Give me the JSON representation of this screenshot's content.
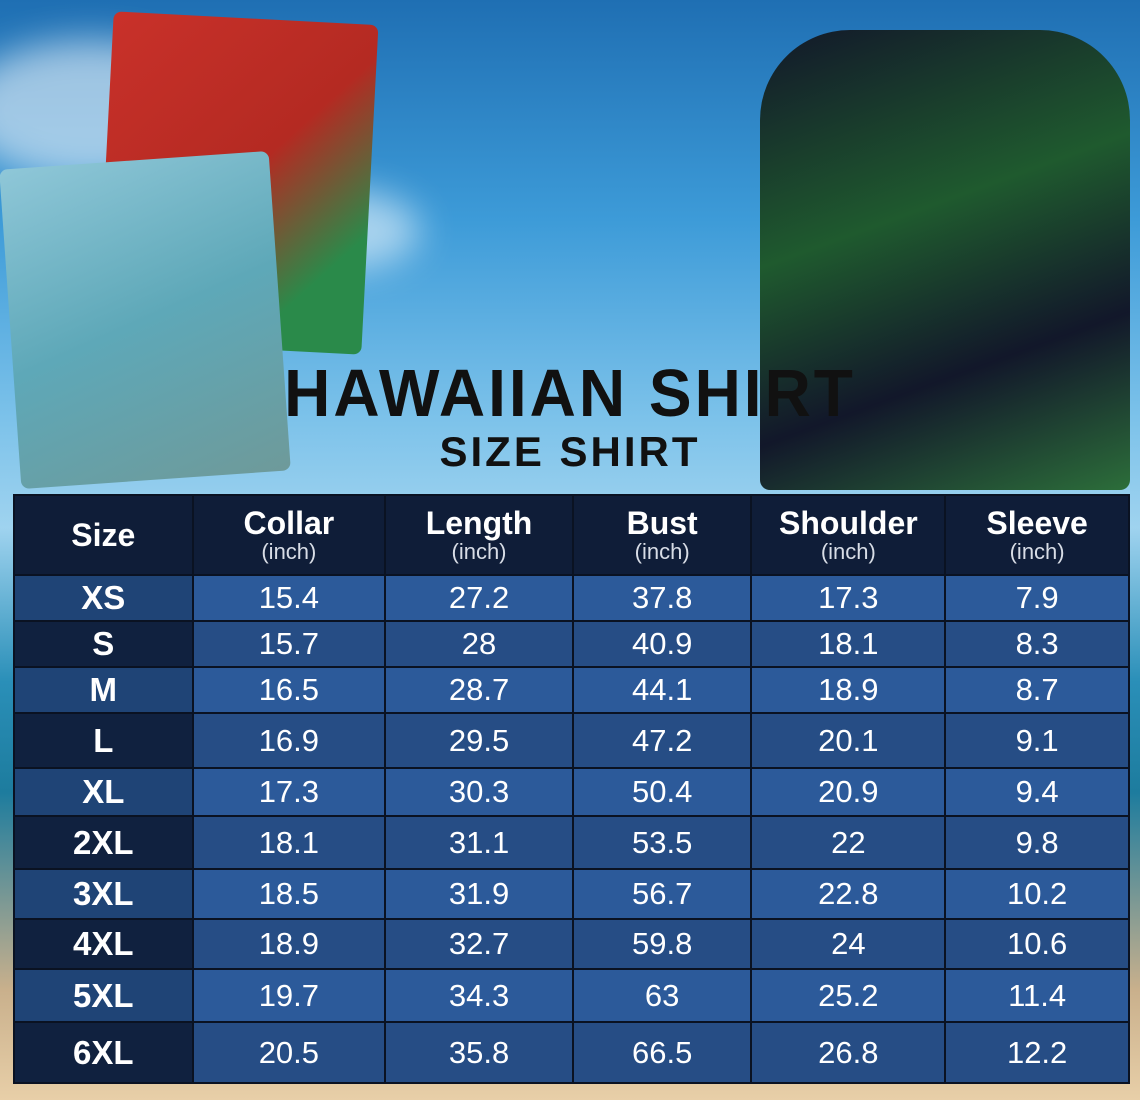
{
  "title": "HAWAIIAN SHIRT",
  "subtitle": "SIZE SHIRT",
  "colors": {
    "header": "#0f1d38",
    "row_light": "#2c5a9a",
    "row_dark": "#264d85"
  },
  "table": {
    "headers": [
      {
        "label": "Size",
        "unit": ""
      },
      {
        "label": "Collar",
        "unit": "(inch)"
      },
      {
        "label": "Length",
        "unit": "(inch)"
      },
      {
        "label": "Bust",
        "unit": "(inch)"
      },
      {
        "label": "Shoulder",
        "unit": "(inch)"
      },
      {
        "label": "Sleeve",
        "unit": "(inch)"
      }
    ],
    "rows": [
      [
        "XS",
        "15.4",
        "27.2",
        "37.8",
        "17.3",
        "7.9"
      ],
      [
        "S",
        "15.7",
        "28",
        "40.9",
        "18.1",
        "8.3"
      ],
      [
        "M",
        "16.5",
        "28.7",
        "44.1",
        "18.9",
        "8.7"
      ],
      [
        "L",
        "16.9",
        "29.5",
        "47.2",
        "20.1",
        "9.1"
      ],
      [
        "XL",
        "17.3",
        "30.3",
        "50.4",
        "20.9",
        "9.4"
      ],
      [
        "2XL",
        "18.1",
        "31.1",
        "53.5",
        "22",
        "9.8"
      ],
      [
        "3XL",
        "18.5",
        "31.9",
        "56.7",
        "22.8",
        "10.2"
      ],
      [
        "4XL",
        "18.9",
        "32.7",
        "59.8",
        "24",
        "10.6"
      ],
      [
        "5XL",
        "19.7",
        "34.3",
        "63",
        "25.2",
        "11.4"
      ],
      [
        "6XL",
        "20.5",
        "35.8",
        "66.5",
        "26.8",
        "12.2"
      ]
    ]
  }
}
